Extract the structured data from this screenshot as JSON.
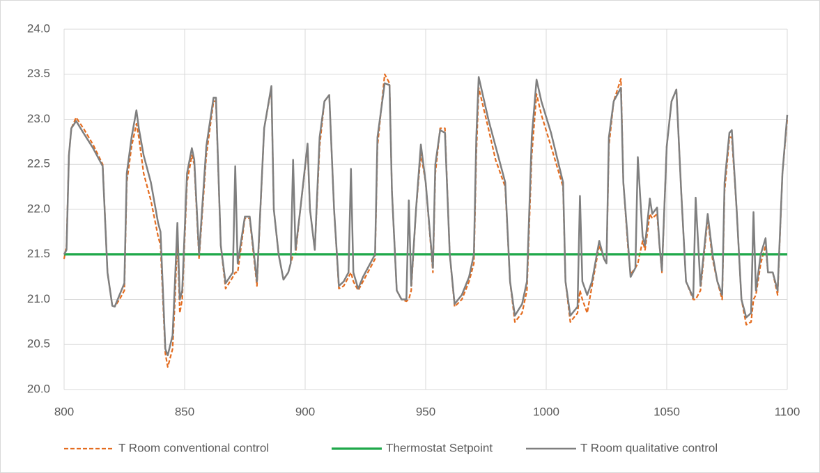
{
  "chart_data": {
    "type": "line",
    "x": [
      800,
      801,
      802,
      803,
      805,
      808,
      812,
      816,
      818,
      820,
      821,
      823,
      825,
      826,
      828,
      830,
      831,
      833,
      836,
      839,
      840,
      841,
      842,
      843,
      845,
      846,
      847,
      848,
      849,
      851,
      853,
      854,
      856,
      859,
      862,
      863,
      865,
      867,
      870,
      871,
      872,
      875,
      877,
      879,
      880,
      883,
      886,
      887,
      889,
      891,
      893,
      894,
      895,
      896,
      898,
      901,
      902,
      904,
      906,
      908,
      910,
      912,
      914,
      916,
      918,
      919,
      920,
      922,
      924,
      927,
      929,
      930,
      933,
      935,
      936,
      938,
      940,
      942,
      943,
      944,
      946,
      948,
      950,
      953,
      954,
      956,
      958,
      960,
      962,
      965,
      968,
      970,
      971,
      972,
      976,
      979,
      983,
      985,
      987,
      990,
      992,
      994,
      996,
      998,
      1002,
      1007,
      1008,
      1010,
      1013,
      1014,
      1015,
      1017,
      1019,
      1022,
      1024,
      1025,
      1026,
      1028,
      1031,
      1032,
      1034,
      1035,
      1037,
      1038,
      1040,
      1041,
      1043,
      1044,
      1046,
      1047,
      1048,
      1050,
      1052,
      1054,
      1056,
      1058,
      1061,
      1062,
      1064,
      1067,
      1069,
      1071,
      1073,
      1074,
      1076,
      1077,
      1079,
      1081,
      1083,
      1085,
      1086,
      1087,
      1089,
      1091,
      1092,
      1094,
      1096,
      1098,
      1100
    ],
    "series": [
      {
        "name": "T Room conventional control",
        "color": "#e46c1f",
        "dashed": true,
        "values": [
          21.45,
          21.6,
          22.6,
          22.9,
          23.02,
          22.9,
          22.72,
          22.5,
          21.3,
          20.93,
          20.92,
          21.0,
          21.1,
          22.3,
          22.7,
          22.95,
          22.8,
          22.4,
          22.1,
          21.7,
          21.6,
          21.0,
          20.4,
          20.25,
          20.45,
          21.0,
          21.7,
          20.85,
          21.0,
          22.3,
          22.6,
          22.5,
          21.45,
          22.6,
          23.2,
          23.2,
          21.6,
          21.12,
          21.25,
          21.3,
          21.3,
          21.9,
          21.9,
          21.4,
          21.15,
          22.9,
          23.35,
          22.0,
          21.5,
          21.22,
          21.3,
          21.4,
          21.5,
          21.5,
          22.0,
          22.7,
          22.0,
          21.55,
          22.7,
          23.2,
          23.27,
          22.0,
          21.12,
          21.15,
          21.25,
          21.3,
          21.2,
          21.1,
          21.2,
          21.35,
          21.45,
          22.7,
          23.5,
          23.4,
          22.2,
          21.1,
          21.0,
          20.98,
          21.0,
          21.1,
          22.0,
          22.62,
          22.3,
          21.3,
          22.4,
          22.9,
          22.9,
          21.5,
          20.92,
          21.0,
          21.2,
          21.4,
          22.6,
          23.35,
          22.9,
          22.55,
          22.25,
          21.2,
          20.75,
          20.85,
          21.1,
          22.6,
          23.28,
          23.05,
          22.7,
          22.25,
          21.2,
          20.75,
          20.85,
          21.1,
          21.0,
          20.85,
          21.15,
          21.6,
          21.45,
          21.4,
          22.7,
          23.2,
          23.45,
          22.3,
          21.55,
          21.28,
          21.35,
          21.4,
          21.65,
          21.55,
          21.95,
          21.9,
          21.95,
          21.6,
          21.3,
          22.7,
          23.2,
          23.33,
          22.2,
          21.2,
          21.0,
          21.0,
          21.1,
          21.9,
          21.45,
          21.2,
          21.0,
          22.2,
          22.8,
          22.8,
          22.0,
          21.0,
          20.72,
          20.75,
          21.0,
          21.05,
          21.4,
          21.6,
          21.3,
          21.3,
          21.05,
          22.4,
          23.0
        ]
      },
      {
        "name": "Thermostat Setpoint",
        "color": "#1fa84a",
        "dashed": false,
        "x": [
          800,
          1100
        ],
        "values": [
          21.5,
          21.5
        ]
      },
      {
        "name": "T Room qualitative control",
        "color": "#7f7f7f",
        "dashed": false,
        "values": [
          21.5,
          21.55,
          22.6,
          22.9,
          22.98,
          22.85,
          22.68,
          22.48,
          21.3,
          20.93,
          20.92,
          21.05,
          21.18,
          22.4,
          22.8,
          23.1,
          22.9,
          22.6,
          22.3,
          21.85,
          21.75,
          21.1,
          20.45,
          20.38,
          20.6,
          21.2,
          21.85,
          21.0,
          21.1,
          22.4,
          22.68,
          22.55,
          21.5,
          22.7,
          23.24,
          23.24,
          21.6,
          21.18,
          21.3,
          22.48,
          21.4,
          21.92,
          21.92,
          21.45,
          21.2,
          22.9,
          23.37,
          22.0,
          21.5,
          21.22,
          21.3,
          21.4,
          22.55,
          21.55,
          22.0,
          22.73,
          22.0,
          21.55,
          22.8,
          23.2,
          23.27,
          22.0,
          21.15,
          21.2,
          21.3,
          22.45,
          21.3,
          21.12,
          21.25,
          21.4,
          21.5,
          22.8,
          23.4,
          23.38,
          22.2,
          21.1,
          21.0,
          21.0,
          22.1,
          21.15,
          22.0,
          22.72,
          22.3,
          21.35,
          22.5,
          22.88,
          22.85,
          21.5,
          20.95,
          21.05,
          21.25,
          21.5,
          22.8,
          23.47,
          23.0,
          22.7,
          22.3,
          21.2,
          20.82,
          20.95,
          21.2,
          22.8,
          23.44,
          23.2,
          22.85,
          22.3,
          21.2,
          20.82,
          20.92,
          22.15,
          21.2,
          21.05,
          21.2,
          21.65,
          21.45,
          21.4,
          22.8,
          23.2,
          23.35,
          22.3,
          21.6,
          21.25,
          21.35,
          22.58,
          21.7,
          21.6,
          22.12,
          21.95,
          22.02,
          21.6,
          21.32,
          22.7,
          23.2,
          23.33,
          22.2,
          21.2,
          21.02,
          22.13,
          21.15,
          21.95,
          21.5,
          21.2,
          21.05,
          22.3,
          22.85,
          22.88,
          22.0,
          21.0,
          20.8,
          20.85,
          21.97,
          21.1,
          21.5,
          21.68,
          21.3,
          21.3,
          21.1,
          22.4,
          23.05
        ]
      }
    ],
    "xlim": [
      800,
      1100
    ],
    "xticks": [
      800,
      850,
      900,
      950,
      1000,
      1050,
      1100
    ],
    "ylim": [
      20,
      24
    ],
    "yticks": [
      {
        "value": 20,
        "label": "20.0"
      },
      20.5,
      {
        "value": 21,
        "label": "21.0"
      },
      21.5,
      {
        "value": 22,
        "label": "22.0"
      },
      22.5,
      {
        "value": 23,
        "label": "23.0"
      },
      23.5,
      {
        "value": 24,
        "label": "24.0"
      }
    ],
    "grid": true,
    "legend": "bottom"
  }
}
